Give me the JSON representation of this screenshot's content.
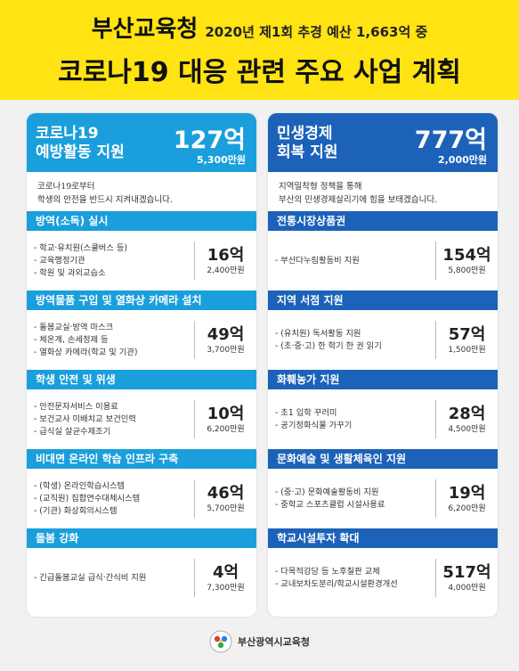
{
  "header": {
    "org": "부산교육청",
    "subtitle": "2020년 제1회 추경 예산 1,663억 중",
    "title": "코로나19 대응 관련 주요 사업 계획"
  },
  "left": {
    "title": "코로나19\n예방활동 지원",
    "amount": "127억",
    "amount_sub": "5,300만원",
    "intro": "코로나19로부터\n학생의 안전을 반드시 지켜내겠습니다.",
    "sections": [
      {
        "title": "방역(소독) 실시",
        "items": [
          "- 학교·유치원(스쿨버스 등)",
          "- 교육행정기관",
          "- 학원 및 과외교습소"
        ],
        "amount": "16억",
        "amount_sub": "2,400만원"
      },
      {
        "title": "방역물품 구입 및 열화상 카메라 설치",
        "items": [
          "- 돌봄교실·방역 마스크",
          "- 체온계, 손세정제 등",
          "- 열화상 카메라(학교 및 기관)"
        ],
        "amount": "49억",
        "amount_sub": "3,700만원"
      },
      {
        "title": "학생 안전 및 위생",
        "items": [
          "- 안전문자서비스 이용료",
          "- 보건교사 미배치교 보건인력",
          "- 급식실 살균수제조기"
        ],
        "amount": "10억",
        "amount_sub": "6,200만원"
      },
      {
        "title": "비대면 온라인 학습 인프라 구축",
        "items": [
          "- (학생) 온라인학습시스템",
          "- (교직원) 집합연수대체시스템",
          "- (기관) 화상회의시스템"
        ],
        "amount": "46억",
        "amount_sub": "5,700만원"
      },
      {
        "title": "돌봄 강화",
        "items": [
          "- 긴급돌봄교실 급식·간식비 지원"
        ],
        "amount": "4억",
        "amount_sub": "7,300만원"
      }
    ]
  },
  "right": {
    "title": "민생경제\n회복 지원",
    "amount": "777억",
    "amount_sub": "2,000만원",
    "intro": "지역밀착형 정책을 통해\n부산의 민생경제살리기에 힘을 보태겠습니다.",
    "sections": [
      {
        "title": "전통시장상품권",
        "items": [
          "- 부산다누림활동비 지원"
        ],
        "amount": "154억",
        "amount_sub": "5,800만원"
      },
      {
        "title": "지역 서점 지원",
        "items": [
          "- (유치원) 독서활동 지원",
          "- (초·중·고) 한 학기 한 권 읽기"
        ],
        "amount": "57억",
        "amount_sub": "1,500만원"
      },
      {
        "title": "화훼농가 지원",
        "items": [
          "- 초1 입학 꾸러미",
          "- 공기정화식물 가꾸기"
        ],
        "amount": "28억",
        "amount_sub": "4,500만원"
      },
      {
        "title": "문화예술 및 생활체육인 지원",
        "items": [
          "- (중·고) 문화예술활동비 지원",
          "- 중학교 스포츠클럽 시설사용료"
        ],
        "amount": "19억",
        "amount_sub": "6,200만원"
      },
      {
        "title": "학교시설투자 확대",
        "items": [
          "- 다목적강당 등 노후칠판 교체",
          "- 교내보차도분리/학교시설환경개선"
        ],
        "amount": "517억",
        "amount_sub": "4,000만원"
      }
    ]
  },
  "footer": {
    "org": "부산광역시교육청",
    "logo_icon": "busan-education-logo-icon"
  }
}
